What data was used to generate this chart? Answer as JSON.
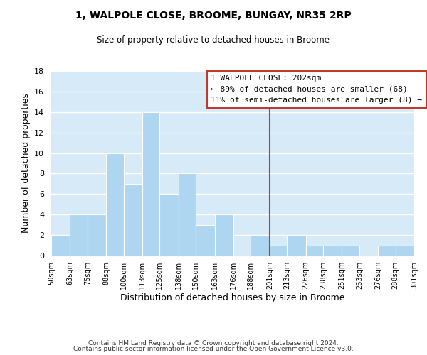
{
  "title": "1, WALPOLE CLOSE, BROOME, BUNGAY, NR35 2RP",
  "subtitle": "Size of property relative to detached houses in Broome",
  "xlabel": "Distribution of detached houses by size in Broome",
  "ylabel": "Number of detached properties",
  "bar_edges": [
    50,
    63,
    75,
    88,
    100,
    113,
    125,
    138,
    150,
    163,
    176,
    188,
    201,
    213,
    226,
    238,
    251,
    263,
    276,
    288,
    301
  ],
  "bar_heights": [
    2,
    4,
    4,
    10,
    7,
    14,
    6,
    8,
    3,
    4,
    0,
    2,
    1,
    2,
    1,
    1,
    1,
    0,
    1,
    1
  ],
  "tick_labels": [
    "50sqm",
    "63sqm",
    "75sqm",
    "88sqm",
    "100sqm",
    "113sqm",
    "125sqm",
    "138sqm",
    "150sqm",
    "163sqm",
    "176sqm",
    "188sqm",
    "201sqm",
    "213sqm",
    "226sqm",
    "238sqm",
    "251sqm",
    "263sqm",
    "276sqm",
    "288sqm",
    "301sqm"
  ],
  "bar_color": "#aed6f1",
  "bar_edge_color": "#ffffff",
  "grid_color": "#ffffff",
  "bg_color": "#d6eaf8",
  "vline_x": 201,
  "vline_color": "#c0392b",
  "ylim": [
    0,
    18
  ],
  "yticks": [
    0,
    2,
    4,
    6,
    8,
    10,
    12,
    14,
    16,
    18
  ],
  "legend_title": "1 WALPOLE CLOSE: 202sqm",
  "legend_line1": "← 89% of detached houses are smaller (68)",
  "legend_line2": "11% of semi-detached houses are larger (8) →",
  "legend_box_color": "#ffffff",
  "legend_border_color": "#c0392b",
  "footer1": "Contains HM Land Registry data © Crown copyright and database right 2024.",
  "footer2": "Contains public sector information licensed under the Open Government Licence v3.0."
}
